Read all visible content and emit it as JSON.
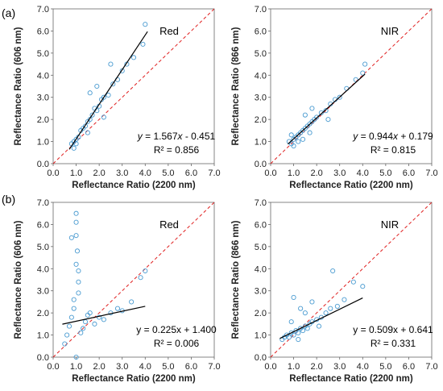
{
  "panel_labels": [
    "(a)",
    "(b)"
  ],
  "chart_data": [
    {
      "type": "scatter",
      "id": "a-red",
      "row": 0,
      "col": 0,
      "title": "Red",
      "xlabel": "Reflectance Ratio (2200 nm)",
      "ylabel": "Reflectance Ratio (606 nm)",
      "xlim": [
        0,
        7
      ],
      "ylim": [
        0,
        7
      ],
      "xticks": [
        "0.0",
        "1.0",
        "2.0",
        "3.0",
        "4.0",
        "5.0",
        "6.0",
        "7.0"
      ],
      "yticks": [
        "0.0",
        "1.0",
        "2.0",
        "3.0",
        "4.0",
        "5.0",
        "6.0",
        "7.0"
      ],
      "fit": {
        "slope": 1.567,
        "intercept": -0.451,
        "x": [
          0.7,
          4.1
        ]
      },
      "equation": [
        "y",
        " = 1.567",
        "x",
        " - 0.451"
      ],
      "r2": "R² = 0.856",
      "equation_italic": true,
      "grid": false,
      "one_to_one_line": true,
      "points": [
        [
          0.8,
          0.9
        ],
        [
          0.9,
          1.0
        ],
        [
          1.0,
          0.9
        ],
        [
          1.1,
          1.2
        ],
        [
          1.2,
          1.5
        ],
        [
          1.3,
          1.6
        ],
        [
          1.4,
          1.7
        ],
        [
          1.5,
          1.9
        ],
        [
          1.6,
          2.0
        ],
        [
          1.7,
          2.2
        ],
        [
          1.8,
          2.5
        ],
        [
          1.9,
          2.4
        ],
        [
          2.0,
          2.6
        ],
        [
          2.1,
          2.9
        ],
        [
          2.2,
          3.0
        ],
        [
          2.4,
          3.1
        ],
        [
          2.6,
          3.6
        ],
        [
          2.8,
          3.8
        ],
        [
          3.0,
          4.2
        ],
        [
          3.2,
          4.5
        ],
        [
          3.5,
          4.8
        ],
        [
          3.9,
          5.4
        ],
        [
          4.0,
          6.3
        ],
        [
          2.5,
          4.5
        ],
        [
          1.6,
          3.2
        ],
        [
          1.9,
          3.5
        ],
        [
          2.2,
          2.1
        ],
        [
          1.5,
          1.4
        ],
        [
          1.0,
          1.1
        ],
        [
          0.9,
          0.7
        ]
      ]
    },
    {
      "type": "scatter",
      "id": "a-nir",
      "row": 0,
      "col": 1,
      "title": "NIR",
      "xlabel": "Reflectance Ratio (2200 nm)",
      "ylabel": "Reflectance Ratio (866 nm)",
      "xlim": [
        0,
        7
      ],
      "ylim": [
        0,
        7
      ],
      "xticks": [
        "0.0",
        "1.0",
        "2.0",
        "3.0",
        "4.0",
        "5.0",
        "6.0",
        "7.0"
      ],
      "yticks": [
        "0.0",
        "1.0",
        "2.0",
        "3.0",
        "4.0",
        "5.0",
        "6.0",
        "7.0"
      ],
      "fit": {
        "slope": 0.944,
        "intercept": 0.179,
        "x": [
          0.75,
          4.1
        ]
      },
      "equation": [
        "y",
        " = 0.944",
        "x",
        " + 0.179"
      ],
      "r2": "R² = 0.815",
      "equation_italic": true,
      "grid": false,
      "one_to_one_line": true,
      "points": [
        [
          0.8,
          1.0
        ],
        [
          0.9,
          0.9
        ],
        [
          1.0,
          1.1
        ],
        [
          1.1,
          1.2
        ],
        [
          1.2,
          1.3
        ],
        [
          1.3,
          1.4
        ],
        [
          1.4,
          1.5
        ],
        [
          1.5,
          1.6
        ],
        [
          1.6,
          1.7
        ],
        [
          1.7,
          1.8
        ],
        [
          1.8,
          1.9
        ],
        [
          1.9,
          2.0
        ],
        [
          2.0,
          2.1
        ],
        [
          2.2,
          2.3
        ],
        [
          2.4,
          2.4
        ],
        [
          2.6,
          2.7
        ],
        [
          2.8,
          2.9
        ],
        [
          3.0,
          3.0
        ],
        [
          3.3,
          3.4
        ],
        [
          3.7,
          3.8
        ],
        [
          4.0,
          4.1
        ],
        [
          4.1,
          4.5
        ],
        [
          1.2,
          1.0
        ],
        [
          1.5,
          2.2
        ],
        [
          1.8,
          2.5
        ],
        [
          1.0,
          0.8
        ],
        [
          2.5,
          2.0
        ],
        [
          1.4,
          1.1
        ],
        [
          0.9,
          1.3
        ],
        [
          1.7,
          1.4
        ]
      ]
    },
    {
      "type": "scatter",
      "id": "b-red",
      "row": 1,
      "col": 0,
      "title": "Red",
      "xlabel": "Reflectance Ratio (2200 nm)",
      "ylabel": "Reflectance Ratio (606 nm)",
      "xlim": [
        0,
        7
      ],
      "ylim": [
        0,
        7
      ],
      "xticks": [
        "0.0",
        "1.0",
        "2.0",
        "3.0",
        "4.0",
        "5.0",
        "6.0",
        "7.0"
      ],
      "yticks": [
        "0.0",
        "1.0",
        "2.0",
        "3.0",
        "4.0",
        "5.0",
        "6.0",
        "7.0"
      ],
      "fit": {
        "slope": 0.225,
        "intercept": 1.4,
        "x": [
          0.4,
          4.0
        ]
      },
      "equation": [
        "y = 0.225x + 1.400"
      ],
      "r2": "R² = 0.006",
      "equation_italic": false,
      "grid": false,
      "one_to_one_line": true,
      "points": [
        [
          0.5,
          0.6
        ],
        [
          0.6,
          1.0
        ],
        [
          0.7,
          1.4
        ],
        [
          0.8,
          1.8
        ],
        [
          0.9,
          2.2
        ],
        [
          1.0,
          6.5
        ],
        [
          1.0,
          6.1
        ],
        [
          1.0,
          5.5
        ],
        [
          1.05,
          4.8
        ],
        [
          1.0,
          4.2
        ],
        [
          1.1,
          3.4
        ],
        [
          1.1,
          2.9
        ],
        [
          0.9,
          2.6
        ],
        [
          1.0,
          0.0
        ],
        [
          1.2,
          1.1
        ],
        [
          1.3,
          1.3
        ],
        [
          1.4,
          1.6
        ],
        [
          1.5,
          1.9
        ],
        [
          1.6,
          2.0
        ],
        [
          1.8,
          1.5
        ],
        [
          2.0,
          1.8
        ],
        [
          2.2,
          1.7
        ],
        [
          2.5,
          2.0
        ],
        [
          2.8,
          2.2
        ],
        [
          3.0,
          2.1
        ],
        [
          3.4,
          2.5
        ],
        [
          3.8,
          3.6
        ],
        [
          4.0,
          3.9
        ],
        [
          0.8,
          5.4
        ],
        [
          1.1,
          3.9
        ]
      ]
    },
    {
      "type": "scatter",
      "id": "b-nir",
      "row": 1,
      "col": 1,
      "title": "NIR",
      "xlabel": "Reflectance Ratio (2200 nm)",
      "ylabel": "Reflectance Ratio (866 nm)",
      "xlim": [
        0,
        7
      ],
      "ylim": [
        0,
        7
      ],
      "xticks": [
        "0.0",
        "1.0",
        "2.0",
        "3.0",
        "4.0",
        "5.0",
        "6.0",
        "7.0"
      ],
      "yticks": [
        "0.0",
        "1.0",
        "2.0",
        "3.0",
        "4.0",
        "5.0",
        "6.0",
        "7.0"
      ],
      "fit": {
        "slope": 0.509,
        "intercept": 0.641,
        "x": [
          0.4,
          4.0
        ]
      },
      "equation": [
        "y = 0.509x + 0.641"
      ],
      "r2": "R² = 0.331",
      "equation_italic": false,
      "grid": false,
      "one_to_one_line": true,
      "points": [
        [
          0.5,
          0.8
        ],
        [
          0.6,
          0.9
        ],
        [
          0.7,
          1.0
        ],
        [
          0.8,
          0.9
        ],
        [
          0.9,
          1.1
        ],
        [
          1.0,
          1.0
        ],
        [
          1.1,
          1.2
        ],
        [
          1.2,
          1.1
        ],
        [
          1.3,
          1.3
        ],
        [
          1.4,
          1.2
        ],
        [
          1.5,
          1.4
        ],
        [
          1.6,
          1.3
        ],
        [
          1.7,
          1.5
        ],
        [
          1.8,
          1.6
        ],
        [
          2.0,
          1.7
        ],
        [
          2.2,
          1.8
        ],
        [
          2.4,
          2.0
        ],
        [
          2.6,
          2.2
        ],
        [
          2.7,
          3.9
        ],
        [
          2.9,
          2.3
        ],
        [
          3.2,
          2.6
        ],
        [
          3.6,
          3.4
        ],
        [
          4.0,
          3.2
        ],
        [
          1.0,
          2.7
        ],
        [
          1.3,
          2.2
        ],
        [
          1.8,
          2.5
        ],
        [
          1.2,
          0.8
        ],
        [
          0.9,
          1.6
        ],
        [
          2.1,
          1.4
        ],
        [
          1.5,
          2.0
        ]
      ]
    }
  ],
  "colors": {
    "points": "#4a9bd1",
    "fit": "#000000",
    "one_to_one": "#e02020",
    "axis": "#666666"
  }
}
